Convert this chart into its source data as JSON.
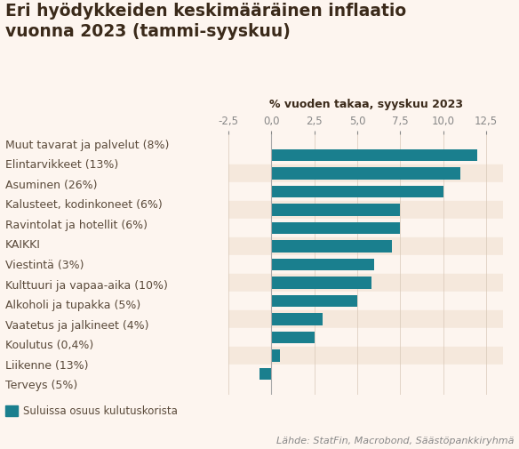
{
  "title_line1": "Eri hyödykkeiden keskimääräinen inflaatio",
  "title_line2": "vuonna 2023 (tammi-syyskuu)",
  "xlabel": "% vuoden takaa, syyskuu 2023",
  "categories": [
    "Muut tavarat ja palvelut (8%)",
    "Elintarvikkeet (13%)",
    "Asuminen (26%)",
    "Kalusteet, kodinkoneet (6%)",
    "Ravintolat ja hotellit (6%)",
    "KAIKKI",
    "Viestintä (3%)",
    "Kulttuuri ja vapaa-aika (10%)",
    "Alkoholi ja tupakka (5%)",
    "Vaatetus ja jalkineet (4%)",
    "Koulutus (0,4%)",
    "Liikenne (13%)",
    "Terveys (5%)"
  ],
  "values": [
    12.0,
    11.0,
    10.0,
    7.5,
    7.5,
    7.0,
    6.0,
    5.8,
    5.0,
    3.0,
    2.5,
    0.5,
    -0.7
  ],
  "bar_color": "#1a7f8e",
  "background_color": "#fdf5ef",
  "alt_row_color": "#f5e8dc",
  "title_color": "#3b2a1a",
  "label_color": "#5a4a3a",
  "axis_color": "#888888",
  "grid_color": "#d8c8b8",
  "xlim": [
    -2.5,
    13.5
  ],
  "xticks": [
    -2.5,
    0.0,
    2.5,
    5.0,
    7.5,
    10.0,
    12.5
  ],
  "xtick_labels": [
    "-2,5",
    "0,0",
    "2,5",
    "5,0",
    "7,5",
    "10,0",
    "12,5"
  ],
  "legend_label": "Suluissa osuus kulutuskorista",
  "footnote": "Lähde: StatFin, Macrobond, Säästöpankkiryhmä",
  "title_fontsize": 13.5,
  "label_fontsize": 9,
  "tick_fontsize": 8.5,
  "xlabel_fontsize": 9,
  "footnote_fontsize": 8,
  "legend_fontsize": 8.5
}
